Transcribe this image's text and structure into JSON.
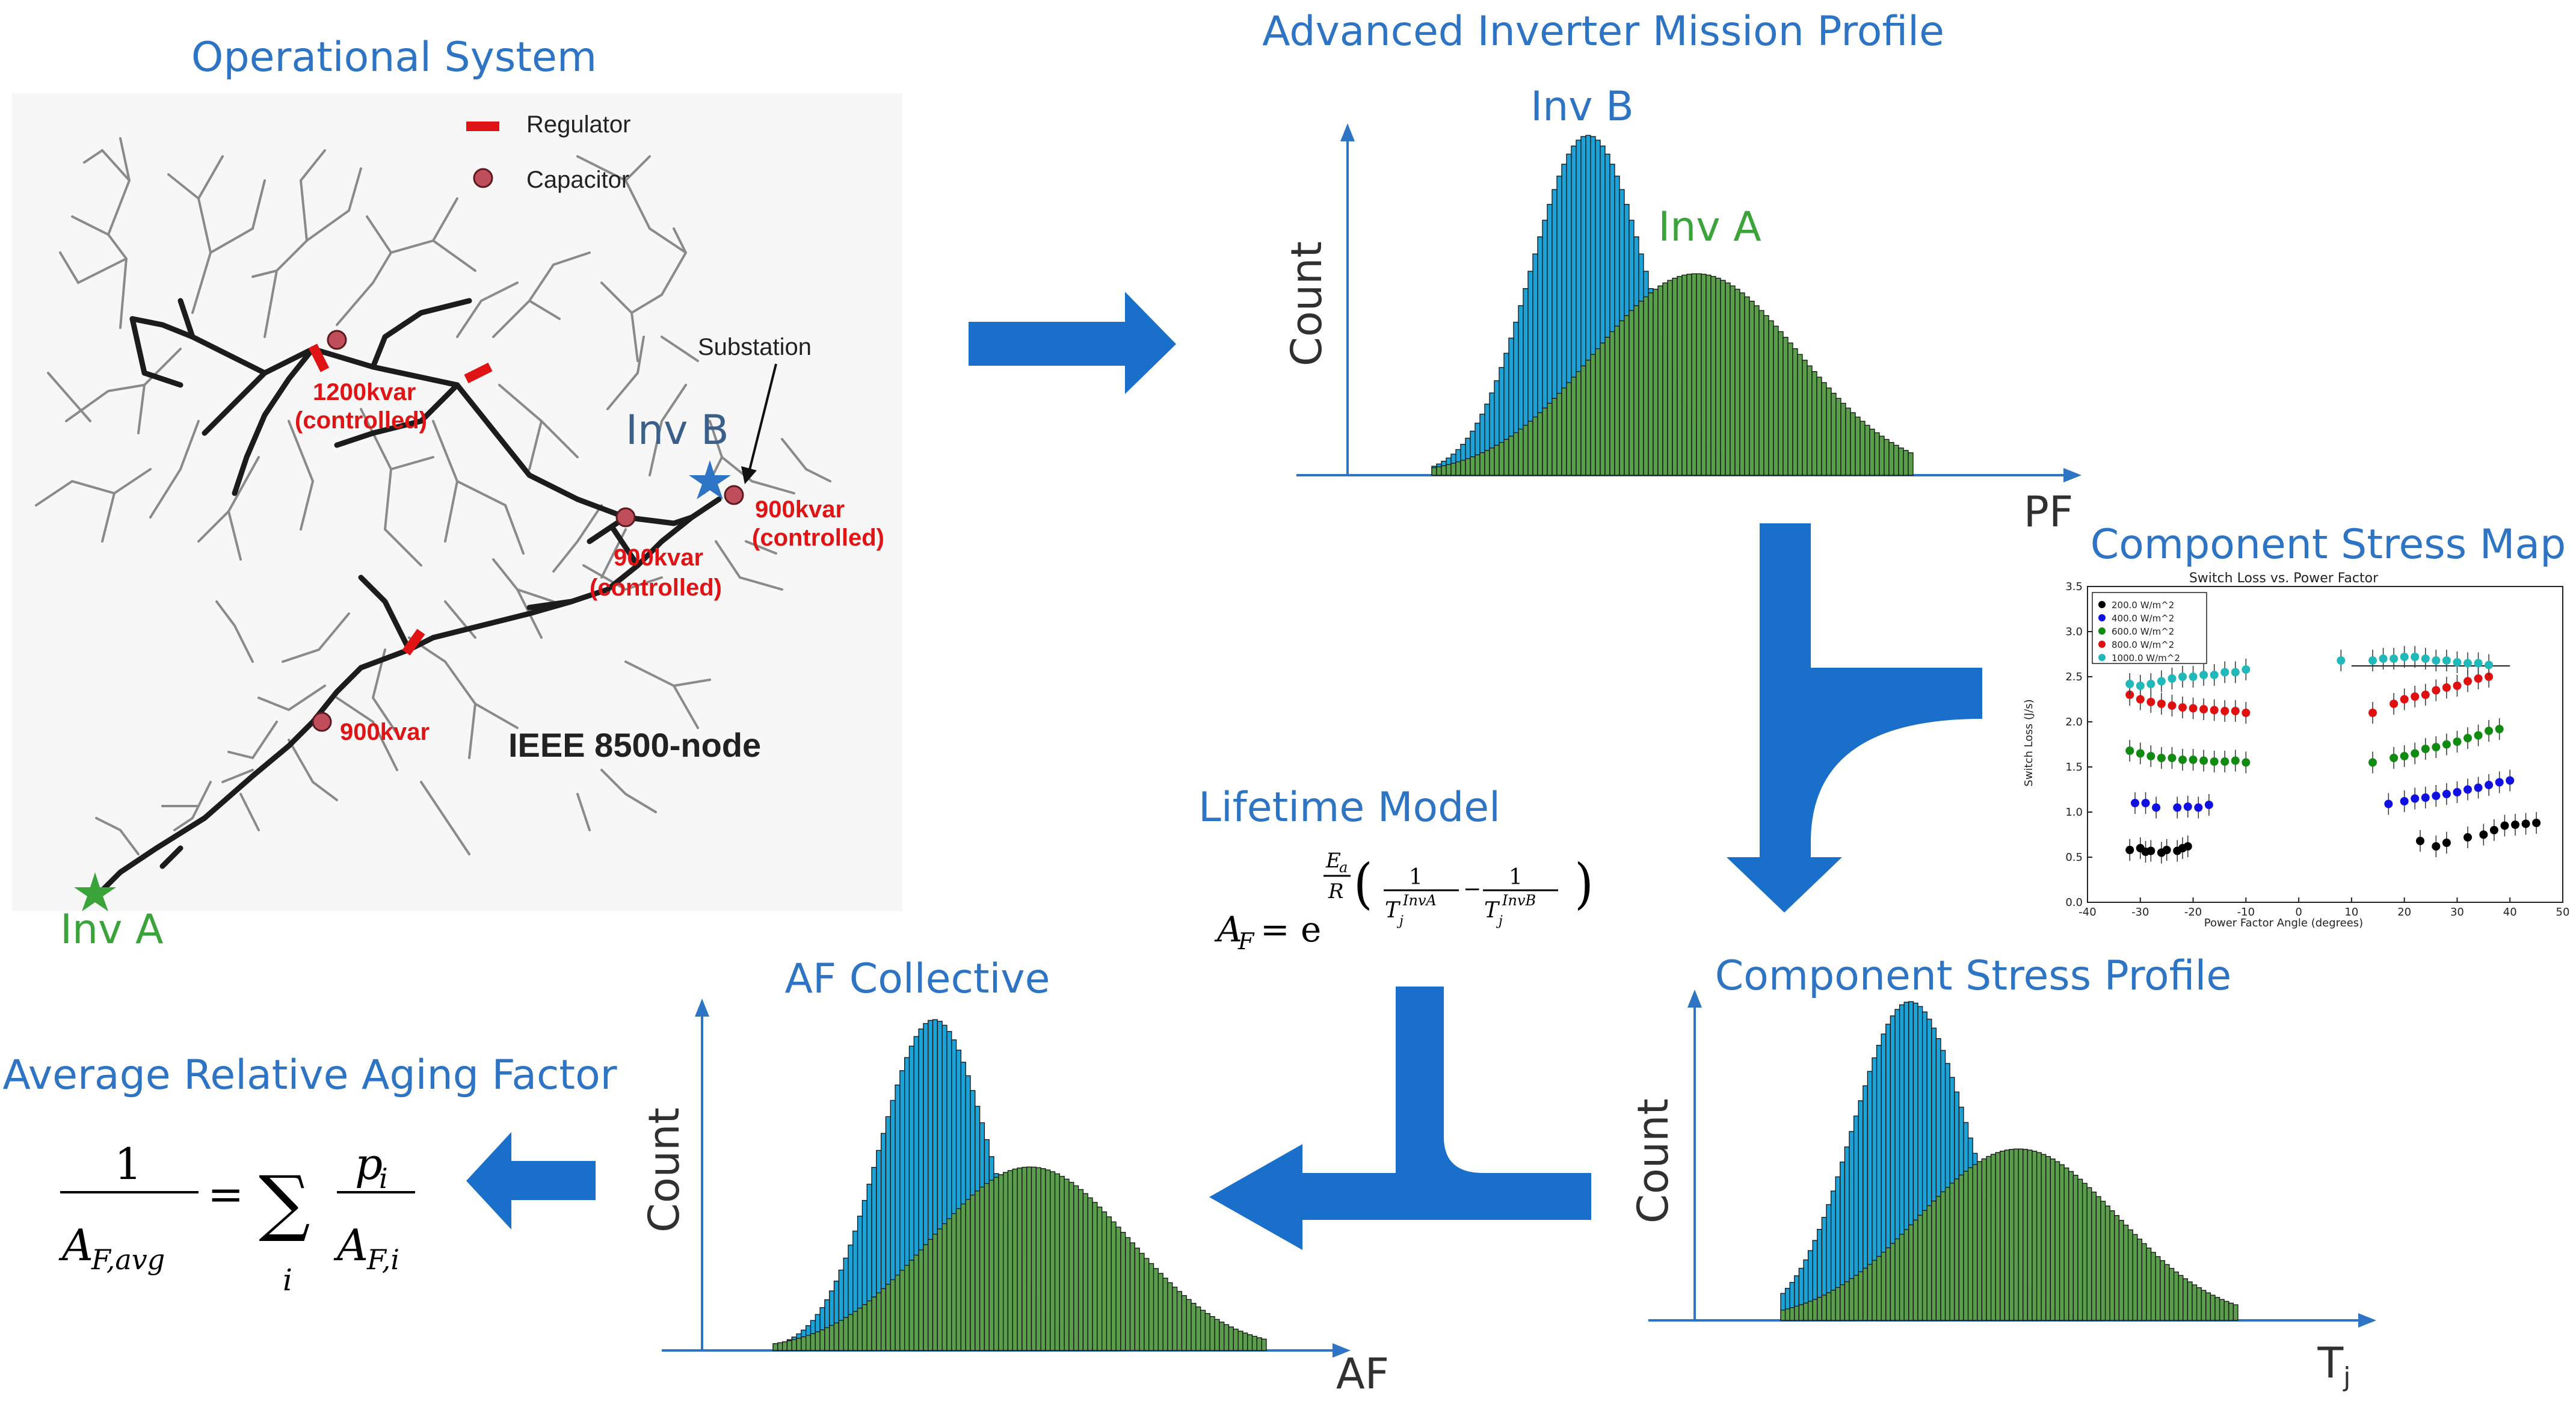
{
  "colors": {
    "title_blue": "#2e74c4",
    "arrow_blue": "#1a6fcb",
    "inv_b_fill": "#1ba3d8",
    "inv_a_fill": "#5a9e4b",
    "green_label": "#3aa33a",
    "red_label": "#e01414"
  },
  "operational": {
    "title": "Operational System",
    "legend_regulator": "Regulator",
    "legend_capacitor": "Capacitor",
    "substation": "Substation",
    "network_name": "IEEE 8500-node",
    "inv_a": "Inv A",
    "inv_b": "Inv B",
    "cap_1200_a": "1200kvar",
    "cap_1200_b": "(controlled)",
    "cap_900c1_a": "900kvar",
    "cap_900c1_b": "(controlled)",
    "cap_900c2_a": "900kvar",
    "cap_900c2_b": "(controlled)",
    "cap_900": "900kvar"
  },
  "mission": {
    "title": "Advanced Inverter Mission Profile",
    "inv_b": "Inv B",
    "inv_a": "Inv A",
    "ylabel": "Count",
    "xlabel": "PF"
  },
  "stress_map": {
    "title": "Component Stress Map",
    "plot_title": "Switch Loss vs. Power Factor",
    "xlabel": "Power Factor Angle (degrees)",
    "ylabel": "Switch Loss (J/s)",
    "x_ticks": [
      "-40",
      "-30",
      "-20",
      "-10",
      "0",
      "10",
      "20",
      "30",
      "40",
      "50"
    ],
    "y_ticks": [
      "0.0",
      "0.5",
      "1.0",
      "1.5",
      "2.0",
      "2.5",
      "3.0",
      "3.5"
    ],
    "legend": [
      "200.0 W/m^2",
      "400.0 W/m^2",
      "600.0 W/m^2",
      "800.0 W/m^2",
      "1000.0 W/m^2"
    ]
  },
  "stress_profile": {
    "title": "Component Stress Profile",
    "ylabel": "Count",
    "xlabel": "T",
    "xlabel_sub": "j"
  },
  "lifetime": {
    "title": "Lifetime Model"
  },
  "collective": {
    "title": "AF Collective",
    "ylabel": "Count",
    "xlabel": "AF"
  },
  "average": {
    "title": "Average Relative Aging Factor"
  },
  "chart_data": [
    {
      "type": "scatter",
      "title": "Switch Loss vs. Power Factor",
      "xlabel": "Power Factor Angle (degrees)",
      "ylabel": "Switch Loss (J/s)",
      "xlim": [
        -40,
        50
      ],
      "ylim": [
        0.0,
        3.5
      ],
      "grid": false,
      "legend_position": "top-left",
      "series": [
        {
          "name": "200.0 W/m^2",
          "color": "#000000",
          "x": [
            -32,
            -30,
            -29,
            -28,
            -26,
            -25,
            -23,
            -22,
            -21,
            23,
            26,
            28,
            32,
            35,
            37,
            39,
            41,
            43,
            45
          ],
          "y": [
            0.58,
            0.6,
            0.56,
            0.57,
            0.55,
            0.58,
            0.57,
            0.6,
            0.62,
            0.68,
            0.62,
            0.66,
            0.72,
            0.75,
            0.8,
            0.85,
            0.86,
            0.87,
            0.88
          ]
        },
        {
          "name": "400.0 W/m^2",
          "color": "#1010e0",
          "x": [
            -31,
            -29,
            -27,
            -23,
            -21,
            -19,
            -17,
            17,
            20,
            22,
            24,
            26,
            28,
            30,
            32,
            34,
            36,
            38,
            40
          ],
          "y": [
            1.1,
            1.1,
            1.05,
            1.05,
            1.06,
            1.05,
            1.08,
            1.09,
            1.12,
            1.15,
            1.16,
            1.18,
            1.2,
            1.22,
            1.25,
            1.27,
            1.3,
            1.33,
            1.35
          ]
        },
        {
          "name": "600.0 W/m^2",
          "color": "#108a10",
          "x": [
            -32,
            -30,
            -28,
            -26,
            -24,
            -22,
            -20,
            -18,
            -16,
            -14,
            -12,
            -10,
            14,
            18,
            20,
            22,
            24,
            26,
            28,
            30,
            32,
            34,
            36,
            38
          ],
          "y": [
            1.68,
            1.65,
            1.62,
            1.6,
            1.6,
            1.58,
            1.58,
            1.57,
            1.56,
            1.56,
            1.57,
            1.55,
            1.55,
            1.6,
            1.62,
            1.65,
            1.7,
            1.72,
            1.75,
            1.78,
            1.82,
            1.85,
            1.9,
            1.92
          ]
        },
        {
          "name": "800.0 W/m^2",
          "color": "#e01010",
          "x": [
            -32,
            -30,
            -28,
            -26,
            -24,
            -22,
            -20,
            -18,
            -16,
            -14,
            -12,
            -10,
            14,
            18,
            20,
            22,
            24,
            26,
            28,
            30,
            32,
            34,
            36
          ],
          "y": [
            2.3,
            2.25,
            2.22,
            2.2,
            2.18,
            2.16,
            2.15,
            2.14,
            2.13,
            2.12,
            2.12,
            2.1,
            2.1,
            2.2,
            2.25,
            2.28,
            2.3,
            2.35,
            2.38,
            2.4,
            2.45,
            2.48,
            2.5
          ]
        },
        {
          "name": "1000.0 W/m^2",
          "color": "#20b8b8",
          "x": [
            -32,
            -30,
            -28,
            -26,
            -24,
            -22,
            -20,
            -18,
            -16,
            -14,
            -12,
            -10,
            8,
            14,
            16,
            18,
            20,
            22,
            24,
            26,
            28,
            30,
            32,
            34,
            36
          ],
          "y": [
            2.42,
            2.4,
            2.42,
            2.45,
            2.48,
            2.5,
            2.5,
            2.52,
            2.52,
            2.55,
            2.55,
            2.58,
            2.68,
            2.68,
            2.7,
            2.7,
            2.72,
            2.72,
            2.7,
            2.68,
            2.68,
            2.66,
            2.65,
            2.65,
            2.63
          ]
        }
      ]
    }
  ]
}
